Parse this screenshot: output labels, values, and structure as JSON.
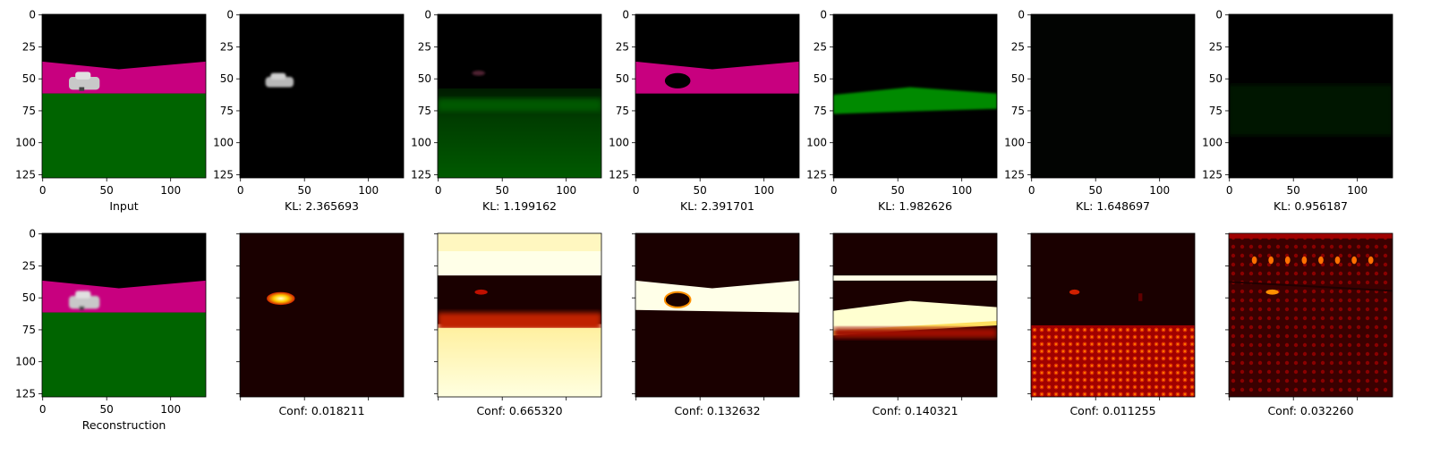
{
  "chart_data": {
    "type": "image-grid",
    "rows": 2,
    "cols": 7,
    "image_size": [
      128,
      128
    ],
    "axis": {
      "xticks": [
        0,
        50,
        100
      ],
      "yticks": [
        0,
        25,
        50,
        75,
        100,
        125
      ],
      "xlim": [
        0,
        128
      ],
      "ylim": [
        128,
        0
      ]
    },
    "top_row": [
      {
        "label": "Input",
        "kind": "rgb-scene"
      },
      {
        "label": "KL: 2.365693",
        "kind": "slot-car"
      },
      {
        "label": "KL: 1.199162",
        "kind": "slot-ground-soft"
      },
      {
        "label": "KL: 2.391701",
        "kind": "slot-road"
      },
      {
        "label": "KL: 1.982626",
        "kind": "slot-ground-band"
      },
      {
        "label": "KL: 1.648697",
        "kind": "slot-empty"
      },
      {
        "label": "KL: 0.956187",
        "kind": "slot-empty-faint"
      }
    ],
    "bottom_row": [
      {
        "label": "Reconstruction",
        "kind": "rgb-scene-blur",
        "show_ticklabels": true
      },
      {
        "label": "Conf: 0.018211",
        "kind": "heat-car",
        "conf": 0.018211,
        "show_ticklabels": false
      },
      {
        "label": "Conf: 0.665320",
        "kind": "heat-ground",
        "conf": 0.66532,
        "show_ticklabels": false
      },
      {
        "label": "Conf: 0.132632",
        "kind": "heat-road",
        "conf": 0.132632,
        "show_ticklabels": false
      },
      {
        "label": "Conf: 0.140321",
        "kind": "heat-band",
        "conf": 0.140321,
        "show_ticklabels": false
      },
      {
        "label": "Conf: 0.011255",
        "kind": "heat-low",
        "conf": 0.011255,
        "show_ticklabels": false
      },
      {
        "label": "Conf: 0.032260",
        "kind": "heat-noise",
        "conf": 0.03226,
        "show_ticklabels": false
      }
    ],
    "colors": {
      "sky": "#000000",
      "road": "#c8007f",
      "ground": "#006400",
      "car": "#c8c8c8",
      "heat_dark": "#1a0000",
      "heat_mid": "#b00000",
      "heat_bright": "#ffff66",
      "heat_white": "#ffffe8"
    }
  }
}
